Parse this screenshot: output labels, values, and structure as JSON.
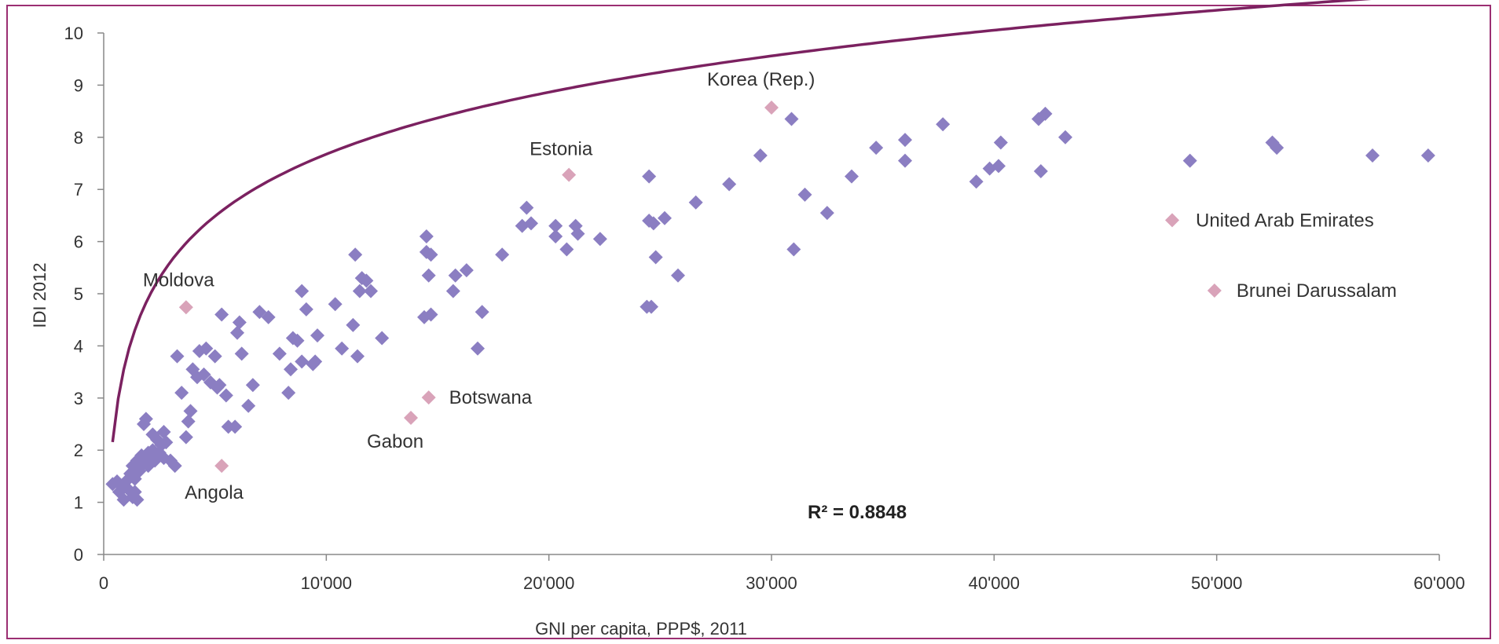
{
  "chart_data": {
    "type": "scatter",
    "xlabel": "GNI per capita, PPP$, 2011",
    "ylabel": "IDI 2012",
    "xlim": [
      0,
      60000
    ],
    "ylim": [
      0,
      10
    ],
    "x_ticks": [
      0,
      10000,
      20000,
      30000,
      40000,
      50000,
      60000
    ],
    "x_tick_labels": [
      "0",
      "10'000",
      "20'000",
      "30'000",
      "40'000",
      "50'000",
      "60'000"
    ],
    "y_ticks": [
      0,
      1,
      2,
      3,
      4,
      5,
      6,
      7,
      8,
      9,
      10
    ],
    "y_tick_labels": [
      "0",
      "1",
      "2",
      "3",
      "4",
      "5",
      "6",
      "7",
      "8",
      "9",
      "10"
    ],
    "grid": false,
    "colors": {
      "main": "#8b7ec2",
      "highlight": "#d9a3b9",
      "trend": "#7b2160",
      "axis": "#888888"
    },
    "r_squared_label": "R² = 0.8848",
    "trendline": {
      "type": "logarithmic",
      "a": 1.715,
      "b": -8.12,
      "x_range": [
        400,
        60000
      ]
    },
    "highlighted": [
      {
        "name": "Korea (Rep.)",
        "x": 30000,
        "y": 8.57
      },
      {
        "name": "Estonia",
        "x": 20900,
        "y": 7.28
      },
      {
        "name": "Moldova",
        "x": 3700,
        "y": 4.74
      },
      {
        "name": "United Arab Emirates",
        "x": 48000,
        "y": 6.41
      },
      {
        "name": "Brunei Darussalam",
        "x": 49900,
        "y": 5.06
      },
      {
        "name": "Botswana",
        "x": 14600,
        "y": 3.01
      },
      {
        "name": "Gabon",
        "x": 13800,
        "y": 2.62
      },
      {
        "name": "Angola",
        "x": 5300,
        "y": 1.7
      }
    ],
    "points": [
      [
        400,
        1.35
      ],
      [
        600,
        1.4
      ],
      [
        700,
        1.2
      ],
      [
        800,
        1.3
      ],
      [
        900,
        1.05
      ],
      [
        1000,
        1.4
      ],
      [
        1100,
        1.25
      ],
      [
        1200,
        1.55
      ],
      [
        1300,
        1.7
      ],
      [
        1300,
        1.1
      ],
      [
        1400,
        1.45
      ],
      [
        1400,
        1.2
      ],
      [
        1500,
        1.8
      ],
      [
        1500,
        1.05
      ],
      [
        1600,
        1.6
      ],
      [
        1700,
        1.9
      ],
      [
        1800,
        1.75
      ],
      [
        1800,
        2.5
      ],
      [
        1900,
        2.6
      ],
      [
        2000,
        1.95
      ],
      [
        2000,
        1.7
      ],
      [
        2100,
        1.85
      ],
      [
        2200,
        2.0
      ],
      [
        2200,
        2.3
      ],
      [
        2300,
        1.8
      ],
      [
        2400,
        2.2
      ],
      [
        2400,
        1.9
      ],
      [
        2500,
        1.95
      ],
      [
        2600,
        2.1
      ],
      [
        2700,
        2.35
      ],
      [
        2700,
        1.85
      ],
      [
        2800,
        2.15
      ],
      [
        3000,
        1.8
      ],
      [
        3200,
        1.7
      ],
      [
        3300,
        3.8
      ],
      [
        3500,
        3.1
      ],
      [
        3700,
        2.25
      ],
      [
        3800,
        2.55
      ],
      [
        3900,
        2.75
      ],
      [
        4000,
        3.55
      ],
      [
        4200,
        3.4
      ],
      [
        4300,
        3.9
      ],
      [
        4500,
        3.45
      ],
      [
        4600,
        3.95
      ],
      [
        4800,
        3.3
      ],
      [
        5000,
        3.8
      ],
      [
        5100,
        3.2
      ],
      [
        5200,
        3.25
      ],
      [
        5300,
        4.6
      ],
      [
        5500,
        3.05
      ],
      [
        5600,
        2.45
      ],
      [
        5900,
        2.45
      ],
      [
        6000,
        4.25
      ],
      [
        6100,
        4.45
      ],
      [
        6200,
        3.85
      ],
      [
        6500,
        2.85
      ],
      [
        6700,
        3.25
      ],
      [
        7000,
        4.65
      ],
      [
        7400,
        4.55
      ],
      [
        7900,
        3.85
      ],
      [
        8300,
        3.1
      ],
      [
        8400,
        3.55
      ],
      [
        8500,
        4.15
      ],
      [
        8700,
        4.1
      ],
      [
        8900,
        3.7
      ],
      [
        8900,
        5.05
      ],
      [
        9100,
        4.7
      ],
      [
        9400,
        3.65
      ],
      [
        9500,
        3.7
      ],
      [
        9600,
        4.2
      ],
      [
        10400,
        4.8
      ],
      [
        10700,
        3.95
      ],
      [
        11200,
        4.4
      ],
      [
        11300,
        5.75
      ],
      [
        11400,
        3.8
      ],
      [
        11500,
        5.05
      ],
      [
        11600,
        5.3
      ],
      [
        11800,
        5.25
      ],
      [
        12000,
        5.05
      ],
      [
        12500,
        4.15
      ],
      [
        14400,
        4.55
      ],
      [
        14500,
        6.1
      ],
      [
        14500,
        5.8
      ],
      [
        14600,
        5.35
      ],
      [
        14700,
        5.75
      ],
      [
        14700,
        4.6
      ],
      [
        15700,
        5.05
      ],
      [
        15800,
        5.35
      ],
      [
        16300,
        5.45
      ],
      [
        16800,
        3.95
      ],
      [
        17000,
        4.65
      ],
      [
        17900,
        5.75
      ],
      [
        18800,
        6.3
      ],
      [
        19000,
        6.65
      ],
      [
        19200,
        6.35
      ],
      [
        20300,
        6.3
      ],
      [
        20300,
        6.1
      ],
      [
        20800,
        5.85
      ],
      [
        21200,
        6.3
      ],
      [
        21300,
        6.15
      ],
      [
        22300,
        6.05
      ],
      [
        24400,
        4.75
      ],
      [
        24500,
        7.25
      ],
      [
        24500,
        6.4
      ],
      [
        24600,
        4.75
      ],
      [
        24700,
        6.35
      ],
      [
        24800,
        5.7
      ],
      [
        25200,
        6.45
      ],
      [
        25800,
        5.35
      ],
      [
        26600,
        6.75
      ],
      [
        28100,
        7.1
      ],
      [
        29500,
        7.65
      ],
      [
        30900,
        8.35
      ],
      [
        31000,
        5.85
      ],
      [
        31500,
        6.9
      ],
      [
        32500,
        6.55
      ],
      [
        33600,
        7.25
      ],
      [
        34700,
        7.8
      ],
      [
        36000,
        7.95
      ],
      [
        36000,
        7.55
      ],
      [
        37700,
        8.25
      ],
      [
        39200,
        7.15
      ],
      [
        39800,
        7.4
      ],
      [
        40200,
        7.45
      ],
      [
        40300,
        7.9
      ],
      [
        42000,
        8.35
      ],
      [
        42100,
        7.35
      ],
      [
        42300,
        8.45
      ],
      [
        43200,
        8.0
      ],
      [
        48800,
        7.55
      ],
      [
        52500,
        7.9
      ],
      [
        52700,
        7.8
      ],
      [
        57000,
        7.65
      ],
      [
        59500,
        7.65
      ]
    ]
  }
}
